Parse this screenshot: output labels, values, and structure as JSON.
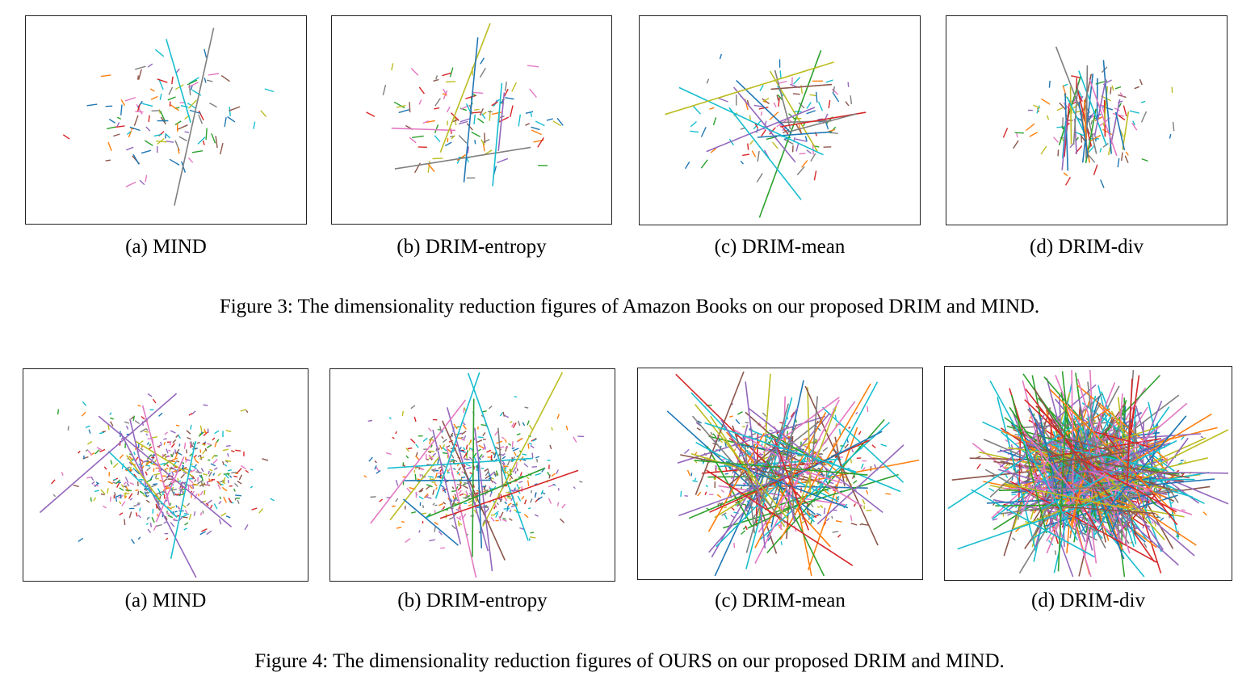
{
  "figures": [
    {
      "caption": "Figure 3: The dimensionality reduction figures of Amazon Books on our proposed DRIM and MIND.",
      "subfigures": [
        {
          "label": "(a) MIND",
          "density": "low",
          "long_strokes": 2
        },
        {
          "label": "(b) DRIM-entropy",
          "density": "low",
          "long_strokes": 6
        },
        {
          "label": "(c) DRIM-mean",
          "density": "low",
          "long_strokes": 14
        },
        {
          "label": "(d) DRIM-div",
          "density": "low",
          "long_strokes": 30,
          "clustered": true
        }
      ]
    },
    {
      "caption": "Figure 4: The dimensionality reduction figures of OURS on our proposed DRIM and MIND.",
      "subfigures": [
        {
          "label": "(a) MIND",
          "density": "high",
          "long_strokes": 10
        },
        {
          "label": "(b) DRIM-entropy",
          "density": "high",
          "long_strokes": 18
        },
        {
          "label": "(c) DRIM-mean",
          "density": "high",
          "long_strokes": 90
        },
        {
          "label": "(d) DRIM-div",
          "density": "high",
          "long_strokes": 320
        }
      ]
    }
  ],
  "palette": [
    "#1f77b4",
    "#ff7f0e",
    "#2ca02c",
    "#d62728",
    "#9467bd",
    "#8c564b",
    "#e377c2",
    "#7f7f7f",
    "#bcbd22",
    "#17becf"
  ]
}
